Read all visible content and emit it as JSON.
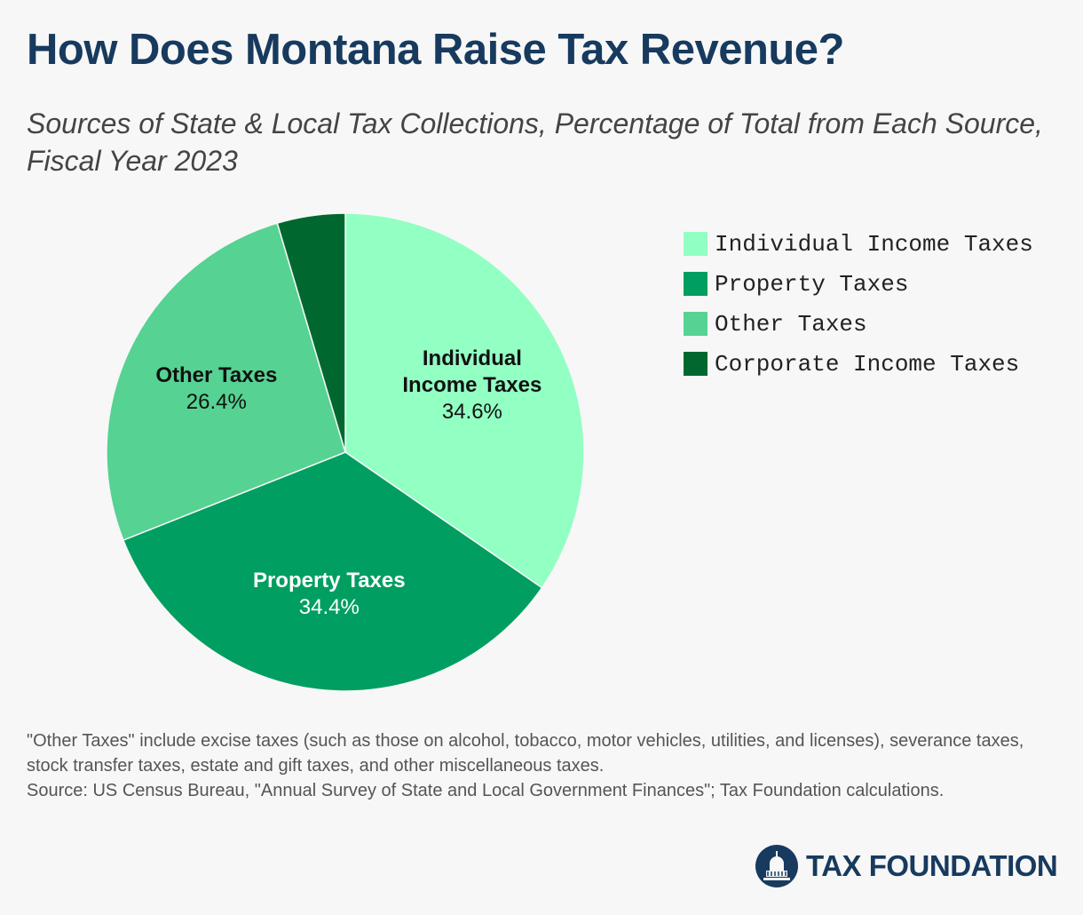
{
  "chart_data": {
    "type": "pie",
    "title": "How Does Montana Raise Tax Revenue?",
    "subtitle": "Sources of State & Local Tax Collections, Percentage of Total from Each Source, Fiscal Year 2023",
    "categories": [
      "Individual Income Taxes",
      "Property Taxes",
      "Other Taxes",
      "Corporate Income Taxes"
    ],
    "values": [
      34.6,
      34.4,
      26.4,
      4.6
    ],
    "value_labels": [
      "34.6%",
      "34.4%",
      "26.4%",
      null
    ],
    "colors": [
      "#92ffc3",
      "#009e60",
      "#56d293",
      "#00682f"
    ],
    "legend": true,
    "notes": [
      "\"Other Taxes\" include excise taxes (such as those on alcohol, tobacco, motor vehicles, utilities, and licenses), severance taxes, stock transfer taxes, estate and gift taxes, and other miscellaneous taxes.",
      "Source: US Census Bureau, \"Annual Survey of State and Local Government Finances\"; Tax Foundation calculations."
    ],
    "logo": "TAX FOUNDATION"
  }
}
